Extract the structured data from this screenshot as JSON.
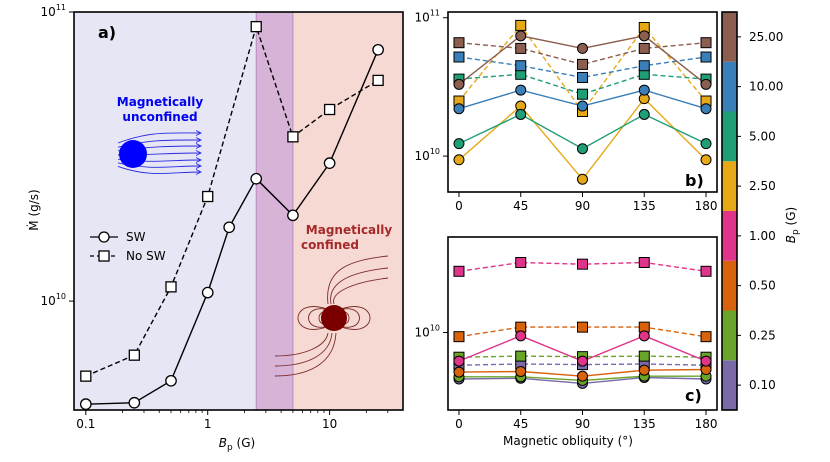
{
  "chart_data": [
    {
      "panel": "a)",
      "type": "line",
      "xscale": "log",
      "yscale": "log",
      "xlim": [
        0.08,
        40
      ],
      "ylim": [
        4200000000,
        100000000000
      ],
      "xlabel": "B_p (G)",
      "ylabel": "Ṁ (g/s)",
      "xticks": [
        {
          "v": 0.1,
          "label": "0.1"
        },
        {
          "v": 1,
          "label": "1"
        },
        {
          "v": 10,
          "label": "10"
        }
      ],
      "yticks": [
        {
          "v": 10000000000,
          "label": "10^10"
        },
        {
          "v": 100000000000,
          "label": "10^11"
        }
      ],
      "regions": [
        {
          "from": 0.08,
          "to": 2.5,
          "color": "#e6e6f5",
          "label": "Magnetically unconfined",
          "label_color": "#0000ee"
        },
        {
          "from": 2.5,
          "to": 5,
          "color": "#d7b3d8",
          "label": "",
          "label_color": ""
        },
        {
          "from": 5,
          "to": 40,
          "color": "#f7d9d3",
          "label": "Magnetically confined",
          "label_color": "#a52a2a"
        }
      ],
      "series": [
        {
          "name": "SW",
          "style": "solid",
          "marker": "circle",
          "x": [
            0.1,
            0.25,
            0.5,
            1,
            1.5,
            2.5,
            5,
            10,
            25
          ],
          "y": [
            4400000000,
            4450000000,
            5300000000,
            10700000000,
            18000000000,
            26500000000,
            19800000000,
            30000000000,
            74000000000
          ]
        },
        {
          "name": "No SW",
          "style": "dashed",
          "marker": "square",
          "x": [
            0.1,
            0.25,
            0.5,
            1,
            2.5,
            5,
            10,
            25
          ],
          "y": [
            5500000000,
            6500000000,
            11200000000,
            23000000000,
            89000000000,
            37000000000,
            46000000000,
            58000000000
          ]
        }
      ]
    },
    {
      "panel": "b)",
      "type": "line",
      "yscale": "log",
      "xlim": [
        -8,
        188
      ],
      "ylim": [
        5500000000,
        110000000000
      ],
      "xticks": [
        {
          "v": 0,
          "label": "0"
        },
        {
          "v": 45,
          "label": "45"
        },
        {
          "v": 90,
          "label": "90"
        },
        {
          "v": 135,
          "label": "135"
        },
        {
          "v": 180,
          "label": "180"
        }
      ],
      "yticks": [
        {
          "v": 10000000000,
          "label": "10^10"
        },
        {
          "v": 100000000000,
          "label": "10^11"
        }
      ],
      "series": [
        {
          "bp": "2.50",
          "sw": true,
          "y": [
            9400000000,
            23000000000,
            6800000000,
            26000000000,
            9400000000
          ]
        },
        {
          "bp": "2.50",
          "sw": false,
          "y": [
            25000000000,
            88000000000,
            21000000000,
            85000000000,
            25000000000
          ]
        },
        {
          "bp": "5.00",
          "sw": true,
          "y": [
            12300000000,
            20000000000,
            11300000000,
            20000000000,
            12300000000
          ]
        },
        {
          "bp": "5.00",
          "sw": false,
          "y": [
            36000000000,
            39000000000,
            28000000000,
            39000000000,
            36000000000
          ]
        },
        {
          "bp": "10.00",
          "sw": true,
          "y": [
            22000000000,
            30000000000,
            23000000000,
            30000000000,
            22000000000
          ]
        },
        {
          "bp": "10.00",
          "sw": false,
          "y": [
            52000000000,
            45000000000,
            37000000000,
            45000000000,
            52000000000
          ]
        },
        {
          "bp": "25.00",
          "sw": true,
          "y": [
            33000000000,
            74000000000,
            60000000000,
            74000000000,
            33000000000
          ]
        },
        {
          "bp": "25.00",
          "sw": false,
          "y": [
            66000000000,
            60000000000,
            46000000000,
            60000000000,
            66000000000
          ]
        }
      ]
    },
    {
      "panel": "c)",
      "type": "line",
      "yscale": "log",
      "xlim": [
        -8,
        188
      ],
      "ylim": [
        3800000000,
        33000000000
      ],
      "xlabel": "Magnetic obliquity (°)",
      "xticks": [
        {
          "v": 0,
          "label": "0"
        },
        {
          "v": 45,
          "label": "45"
        },
        {
          "v": 90,
          "label": "90"
        },
        {
          "v": 135,
          "label": "135"
        },
        {
          "v": 180,
          "label": "180"
        }
      ],
      "yticks": [
        {
          "v": 10000000000,
          "label": "10^10"
        }
      ],
      "series": [
        {
          "bp": "0.10",
          "sw": true,
          "y": [
            5600000000,
            5650000000,
            5300000000,
            5700000000,
            5600000000
          ]
        },
        {
          "bp": "0.10",
          "sw": false,
          "y": [
            6650000000,
            6750000000,
            6700000000,
            6750000000,
            6650000000
          ]
        },
        {
          "bp": "0.25",
          "sw": true,
          "y": [
            5750000000,
            5750000000,
            5500000000,
            5800000000,
            5800000000
          ]
        },
        {
          "bp": "0.25",
          "sw": false,
          "y": [
            7350000000,
            7450000000,
            7400000000,
            7450000000,
            7350000000
          ]
        },
        {
          "bp": "0.50",
          "sw": true,
          "y": [
            6100000000,
            6150000000,
            5800000000,
            6250000000,
            6300000000
          ]
        },
        {
          "bp": "0.50",
          "sw": false,
          "y": [
            9500000000,
            10700000000,
            10700000000,
            10700000000,
            9500000000
          ]
        },
        {
          "bp": "1.00",
          "sw": true,
          "y": [
            7000000000,
            9600000000,
            7000000000,
            9600000000,
            7000000000
          ]
        },
        {
          "bp": "1.00",
          "sw": false,
          "y": [
            21500000000,
            24000000000,
            23500000000,
            24000000000,
            21500000000
          ]
        }
      ]
    }
  ],
  "colorbar": {
    "label": "B_p (G)",
    "levels": [
      {
        "label": "0.10",
        "color": "#7a6aa8"
      },
      {
        "label": "0.25",
        "color": "#6aa52a"
      },
      {
        "label": "0.50",
        "color": "#d9620d"
      },
      {
        "label": "1.00",
        "color": "#e0338a"
      },
      {
        "label": "2.50",
        "color": "#e6a817"
      },
      {
        "label": "5.00",
        "color": "#1f9e77"
      },
      {
        "label": "10.00",
        "color": "#3a7fb8"
      },
      {
        "label": "25.00",
        "color": "#8c5e50"
      }
    ]
  },
  "legend": {
    "sw_label": "SW",
    "nosw_label": "No SW"
  },
  "annotations": {
    "unconfined_line1": "Magnetically",
    "unconfined_line2": "unconfined",
    "confined_line1": "Magnetically",
    "confined_line2": "confined",
    "star_colors": {
      "unconfined": "#0000ff",
      "confined": "#7a0000"
    }
  }
}
